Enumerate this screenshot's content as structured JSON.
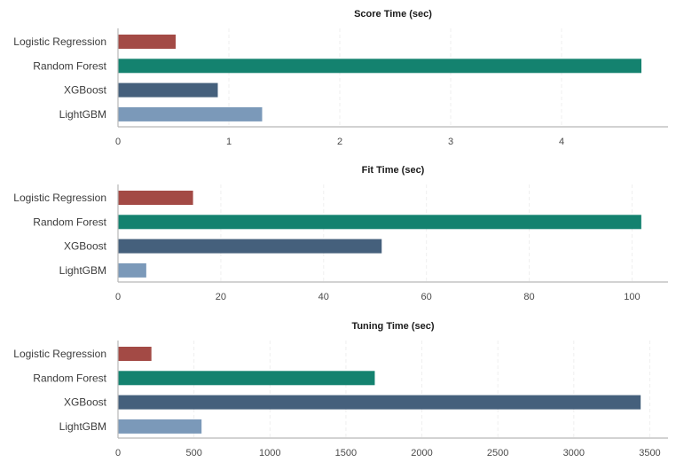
{
  "chart_data": [
    {
      "type": "bar",
      "orientation": "horizontal",
      "title": "Score Time (sec)",
      "categories": [
        "Logistic Regression",
        "Random Forest",
        "XGBoost",
        "LightGBM"
      ],
      "values": [
        0.52,
        4.72,
        0.9,
        1.3
      ],
      "xticks": [
        0,
        1,
        2,
        3,
        4
      ],
      "xlim": [
        0,
        4.96
      ],
      "grid": true,
      "colors": [
        "#a34a45",
        "#14826f",
        "#45607c",
        "#7b99b9"
      ]
    },
    {
      "type": "bar",
      "orientation": "horizontal",
      "title": "Fit Time (sec)",
      "categories": [
        "Logistic Regression",
        "Random Forest",
        "XGBoost",
        "LightGBM"
      ],
      "values": [
        14.6,
        101.8,
        51.3,
        5.5
      ],
      "xticks": [
        0,
        20,
        40,
        60,
        80,
        100
      ],
      "xlim": [
        0,
        107
      ],
      "grid": true,
      "colors": [
        "#a34a45",
        "#14826f",
        "#45607c",
        "#7b99b9"
      ]
    },
    {
      "type": "bar",
      "orientation": "horizontal",
      "title": "Tuning Time (sec)",
      "categories": [
        "Logistic Regression",
        "Random Forest",
        "XGBoost",
        "LightGBM"
      ],
      "values": [
        220,
        1690,
        3440,
        550
      ],
      "xticks": [
        0,
        500,
        1000,
        1500,
        2000,
        2500,
        3000,
        3500
      ],
      "xlim": [
        0,
        3620
      ],
      "grid": true,
      "colors": [
        "#a34a45",
        "#14826f",
        "#45607c",
        "#7b99b9"
      ]
    }
  ]
}
